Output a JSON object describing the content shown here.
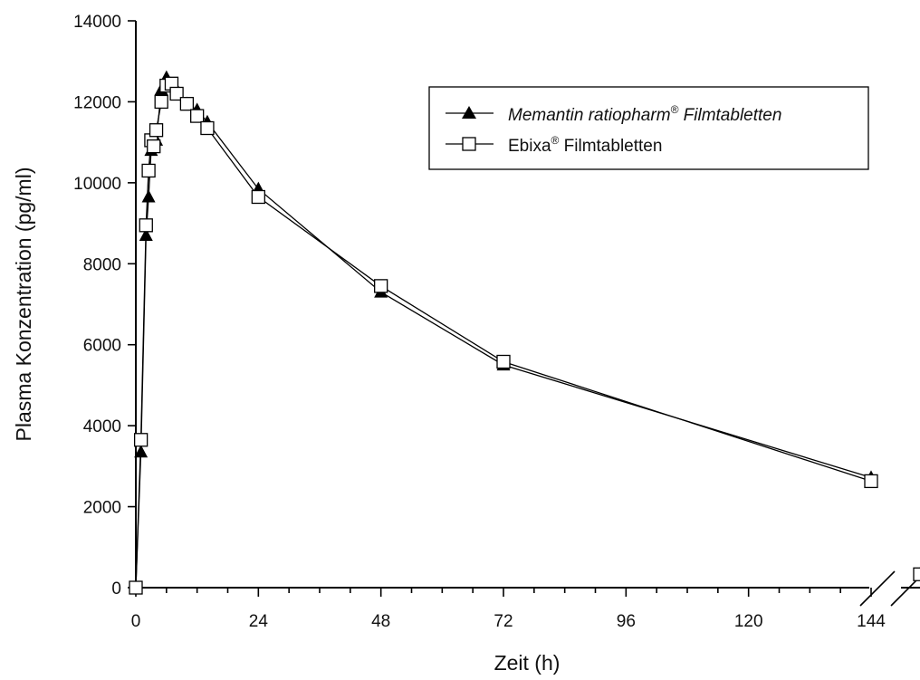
{
  "chart_data": {
    "type": "line",
    "title": "",
    "xlabel": "Zeit (h)",
    "ylabel": "Plasma Konzentration (pg/ml)",
    "xlim": [
      0,
      144
    ],
    "ylim": [
      0,
      14000
    ],
    "x_ticks": [
      0,
      24,
      48,
      72,
      96,
      120,
      144
    ],
    "y_ticks": [
      0,
      2000,
      4000,
      6000,
      8000,
      10000,
      12000,
      14000
    ],
    "grid": false,
    "legend_position": "top-right",
    "axis_break": true,
    "series": [
      {
        "name_parts": [
          "Memantin ratiopharm",
          "®",
          " Filmtabletten"
        ],
        "marker": "filled-triangle",
        "color": "#000000",
        "x": [
          0,
          1,
          2,
          2.5,
          3,
          4,
          5,
          6,
          8,
          10,
          12,
          14,
          24,
          48,
          72,
          144
        ],
        "y": [
          0,
          3350,
          8700,
          9650,
          10800,
          11050,
          12300,
          12600,
          12300,
          11950,
          11800,
          11500,
          9850,
          7300,
          5500,
          2720
        ],
        "post_break": {
          "y": 330
        }
      },
      {
        "name_parts": [
          "Ebixa",
          "®",
          " Filmtabletten"
        ],
        "marker": "open-square",
        "color": "#000000",
        "x": [
          0,
          1,
          2,
          2.5,
          3,
          3.5,
          4,
          5,
          6,
          7,
          8,
          10,
          12,
          14,
          24,
          48,
          72,
          144
        ],
        "y": [
          0,
          3650,
          8950,
          10300,
          11050,
          10900,
          11300,
          12000,
          12400,
          12450,
          12200,
          11950,
          11650,
          11350,
          9650,
          7450,
          5580,
          2630
        ],
        "post_break": {
          "y": 330
        }
      }
    ]
  }
}
